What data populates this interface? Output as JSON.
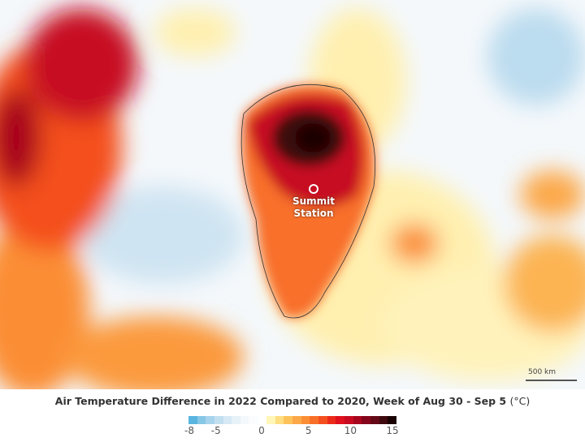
{
  "map": {
    "marker": {
      "label_line1": "Summit",
      "label_line2": "Station",
      "icon": "circle-marker-icon"
    },
    "scale_bar": {
      "label": "500 km"
    }
  },
  "legend": {
    "title": "Air Temperature Difference in 2022 Compared to 2020, Week of Aug 30 - Sep 5",
    "unit": "(°C)",
    "range": [
      -8,
      15
    ],
    "ticks": [
      "-8",
      "-5",
      "0",
      "5",
      "10",
      "15"
    ],
    "tick_values": [
      -8,
      -5,
      0,
      5,
      10,
      15
    ],
    "cold_colors": [
      "#5ab4e0",
      "#86c7e6",
      "#a8d3ec",
      "#c2dff0",
      "#d6e9f4",
      "#e6f1f8",
      "#f3f8fc",
      "#fafcfe"
    ],
    "warm_colors": [
      "#fff6b8",
      "#fede80",
      "#fdc35a",
      "#fca848",
      "#fb8e34",
      "#f87028",
      "#f4501f",
      "#ec2a1a",
      "#e0101e",
      "#c70a20",
      "#a8061e",
      "#85051c",
      "#640916",
      "#3e0a0e",
      "#1a0204"
    ]
  }
}
